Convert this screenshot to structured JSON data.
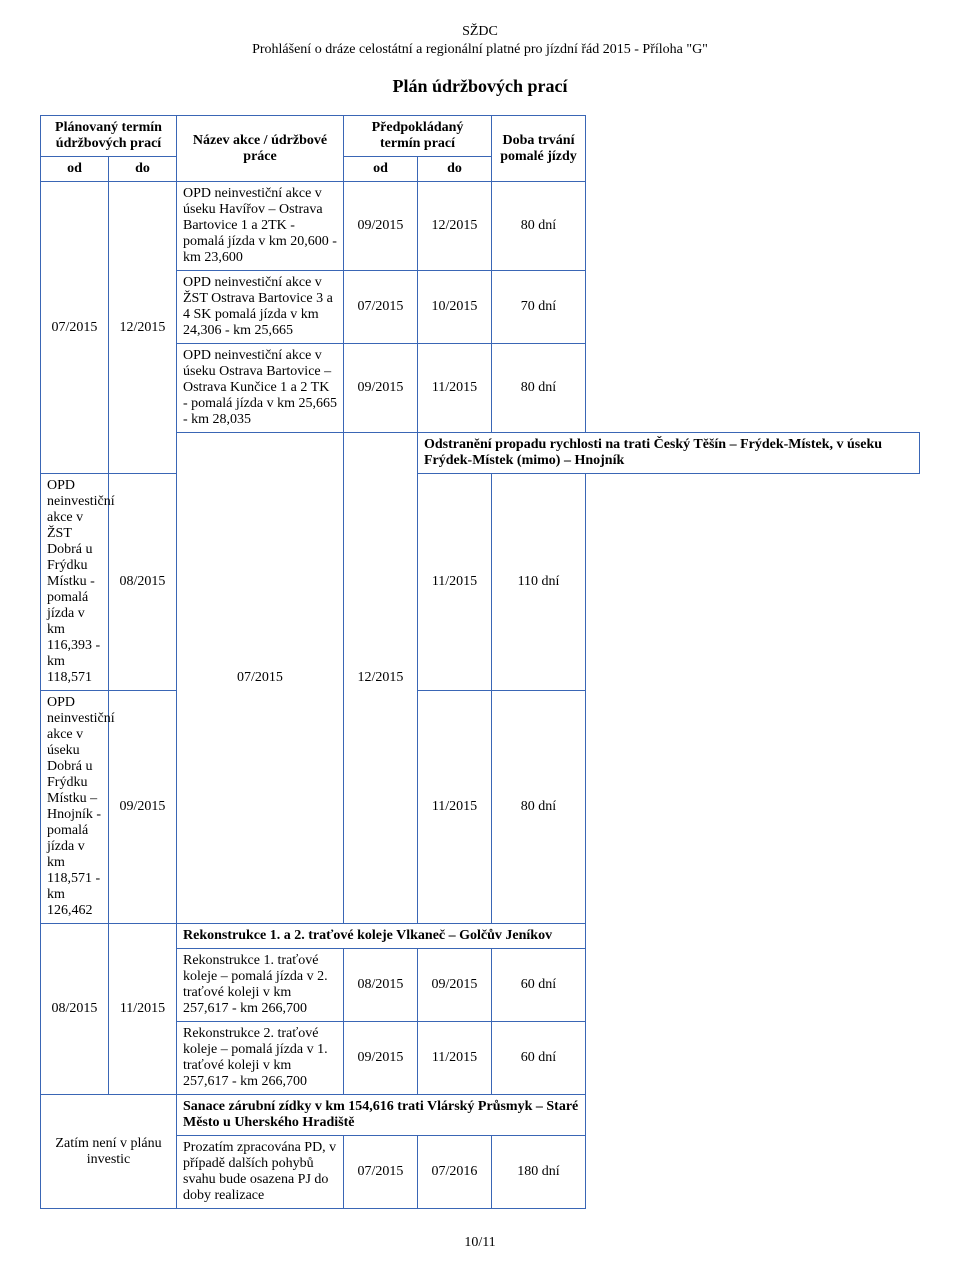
{
  "header": {
    "org": "SŽDC",
    "subtitle": "Prohlášení o dráze celostátní a regionální platné pro jízdní řád 2015 - Příloha \"G\"",
    "title": "Plán údržbových prací"
  },
  "table": {
    "head": {
      "col1": "Plánovaný termín údržbových prací",
      "col2": "Název akce / údržbové práce",
      "col3": "Předpokládaný termín prací",
      "col4": "Doba trvání pomalé jízdy",
      "od": "od",
      "do": "do"
    },
    "rows": [
      {
        "od1": "07/2015",
        "do1": "12/2015",
        "name": "OPD neinvestiční akce v úseku Havířov – Ostrava Bartovice 1 a 2TK - pomalá jízda v km 20,600 -  km 23,600",
        "od2": "09/2015",
        "do2": "12/2015",
        "dur": "80 dní",
        "span": 4
      },
      {
        "name": "OPD neinvestiční akce v ŽST Ostrava Bartovice 3 a 4 SK pomalá jízda v km 24,306 -  km 25,665",
        "od2": "07/2015",
        "do2": "10/2015",
        "dur": "70 dní"
      },
      {
        "name": "OPD neinvestiční akce v úseku Ostrava Bartovice – Ostrava Kunčice 1 a 2 TK - pomalá jízda v km 25,665 -  km 28,035",
        "od2": "09/2015",
        "do2": "11/2015",
        "dur": "80 dní"
      },
      {
        "od1": "07/2015",
        "do1": "12/2015",
        "name": "Odstranění propadu rychlosti na trati Český Těšín – Frýdek-Místek, v úseku Frýdek-Místek (mimo) – Hnojník",
        "section": true,
        "span": 3
      },
      {
        "name": "OPD neinvestiční akce v ŽST Dobrá u Frýdku Místku - pomalá jízda v km 116,393 -  km 118,571",
        "od2": "08/2015",
        "do2": "11/2015",
        "dur": "110 dní"
      },
      {
        "name": "OPD neinvestiční akce v úseku Dobrá u Frýdku Místku – Hnojník - pomalá jízda v km 118,571 -  km 126,462",
        "od2": "09/2015",
        "do2": "11/2015",
        "dur": "80 dní"
      },
      {
        "od1": "08/2015",
        "do1": "11/2015",
        "name": "Rekonstrukce 1. a 2. traťové koleje Vlkaneč – Golčův Jeníkov",
        "section": true,
        "span": 3
      },
      {
        "name": "Rekonstrukce 1. traťové koleje – pomalá jízda v 2. traťové koleji v km 257,617 -  km 266,700",
        "od2": "08/2015",
        "do2": "09/2015",
        "dur": "60 dní"
      },
      {
        "name": "Rekonstrukce 2. traťové koleje – pomalá jízda v 1. traťové koleji v km 257,617 -  km 266,700",
        "od2": "09/2015",
        "do2": "11/2015",
        "dur": "60 dní"
      },
      {
        "od1": "Zatím není v plánu investic",
        "name": "Sanace zárubní zídky v km 154,616 trati Vlárský Průsmyk – Staré Město u Uherského Hradiště",
        "section": true,
        "span": 2,
        "merged": true
      },
      {
        "name": "Prozatím zpracována PD, v případě dalších pohybů svahu bude osazena PJ do doby realizace",
        "od2": "07/2015",
        "do2": "07/2016",
        "dur": "180 dní"
      }
    ]
  },
  "pagenum": "10/11"
}
